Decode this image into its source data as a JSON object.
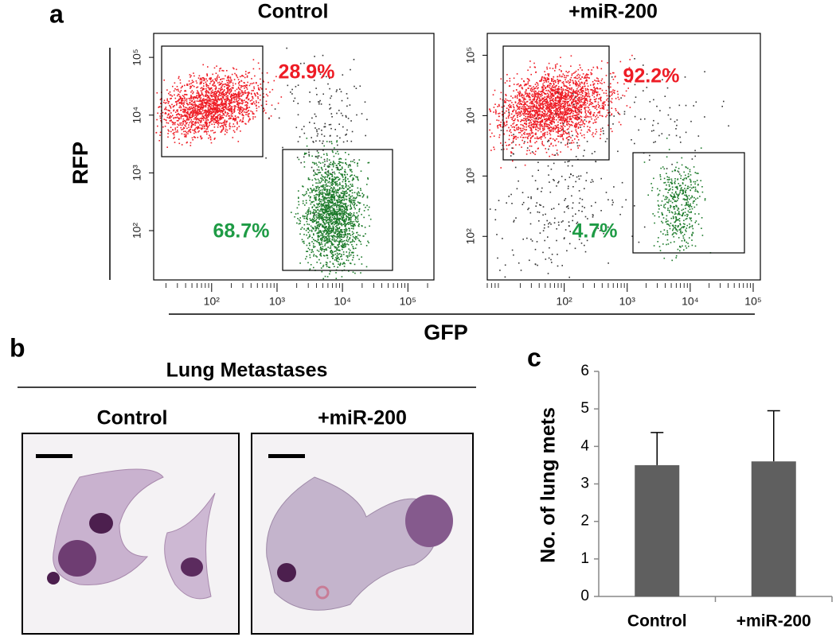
{
  "panel_labels": [
    "a",
    "b",
    "c"
  ],
  "panel_a": {
    "x_label": "GFP",
    "y_label": "RFP"
  },
  "panel_b": {
    "title": "Lung Metastases",
    "image_titles": [
      "Control",
      "+miR-200"
    ]
  },
  "chart_data": [
    {
      "type": "flow",
      "title": "Control",
      "log_scale": true,
      "xlim": [
        13,
        250000
      ],
      "ylim": [
        14,
        260000
      ],
      "xticks": [
        {
          "value": 100,
          "label": "10²"
        },
        {
          "value": 1000,
          "label": "10³"
        },
        {
          "value": 10000,
          "label": "10⁴"
        },
        {
          "value": 100000,
          "label": "10⁵"
        }
      ],
      "yticks": [
        {
          "value": 100,
          "label": "10²"
        },
        {
          "value": 1000,
          "label": "10³"
        },
        {
          "value": 10000,
          "label": "10⁴"
        },
        {
          "value": 100000,
          "label": "10⁵"
        }
      ],
      "values": [
        28.9,
        68.7
      ],
      "value_labels": [
        "28.9%",
        "68.7%"
      ],
      "colors": [
        "#ee1c25",
        "#1e9b45"
      ]
    },
    {
      "type": "flow",
      "title": "+miR-200",
      "log_scale": true,
      "xlim": [
        6,
        130000
      ],
      "ylim": [
        19,
        230000
      ],
      "xticks": [
        {
          "value": 100,
          "label": "10²"
        },
        {
          "value": 1000,
          "label": "10³"
        },
        {
          "value": 10000,
          "label": "10⁴"
        },
        {
          "value": 100000,
          "label": "10⁵"
        }
      ],
      "yticks": [
        {
          "value": 100,
          "label": "10²"
        },
        {
          "value": 1000,
          "label": "10³"
        },
        {
          "value": 10000,
          "label": "10⁴"
        },
        {
          "value": 100000,
          "label": "10⁵"
        }
      ],
      "values": [
        92.2,
        4.7
      ],
      "value_labels": [
        "92.2%",
        "4.7%"
      ],
      "colors": [
        "#ee1c25",
        "#1e9b45"
      ]
    },
    {
      "type": "bar",
      "y_label": "No. of lung mets",
      "categories": [
        "Control",
        "+miR-200"
      ],
      "values": [
        3.5,
        3.6
      ],
      "errors": [
        0.87,
        1.35
      ],
      "color": "#5f5f5f",
      "ylim": [
        0,
        6
      ],
      "yticks": [
        0,
        1,
        2,
        3,
        4,
        5,
        6
      ]
    }
  ]
}
